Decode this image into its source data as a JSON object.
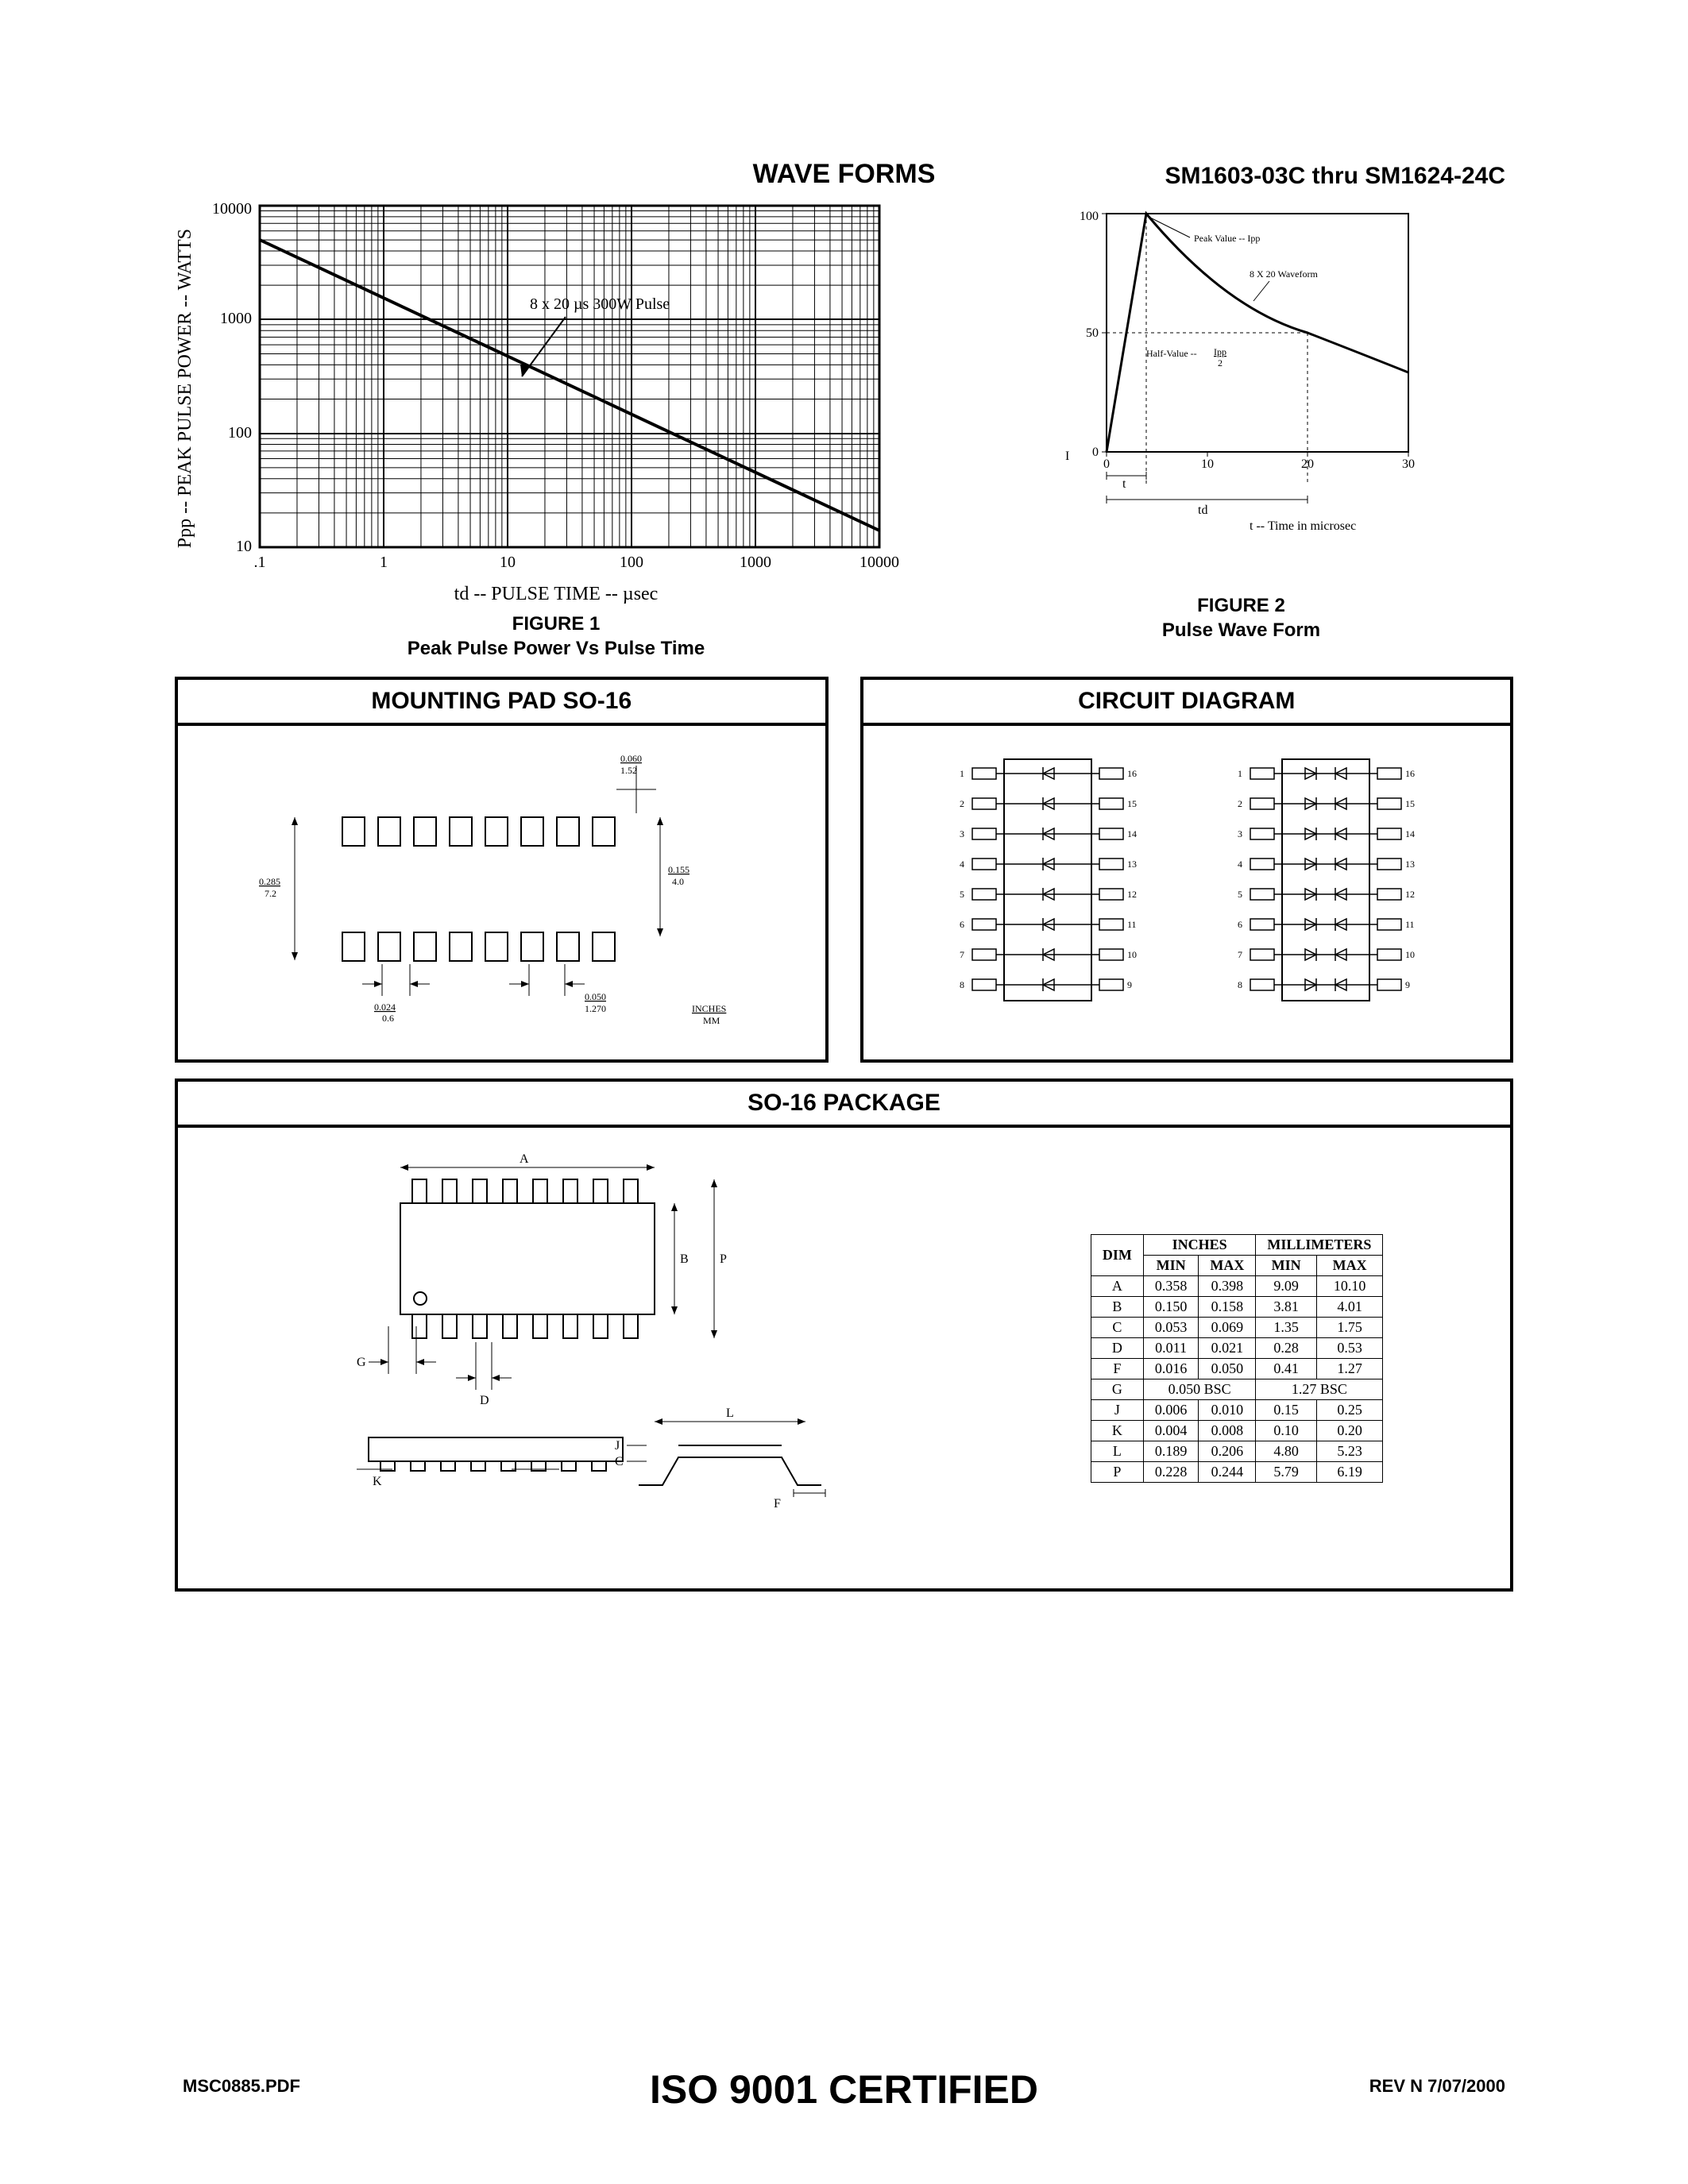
{
  "header": {
    "part_number": "SM1603-03C thru SM1624-24C",
    "title": "WAVE FORMS"
  },
  "figure1": {
    "caption_line1": "FIGURE  1",
    "caption_line2": "Peak Pulse Power Vs Pulse Time",
    "y_label": "Ppp -- PEAK PULSE POWER -- WATTS",
    "x_label": "td -- PULSE TIME -- µsec",
    "annotation": "8 x 20 µs 300W Pulse",
    "type": "loglog-line",
    "xlim": [
      0.1,
      10000
    ],
    "ylim": [
      10,
      10000
    ],
    "x_ticks": [
      ".1",
      "1",
      "10",
      "100",
      "1000",
      "10000"
    ],
    "y_ticks": [
      "10",
      "100",
      "1000",
      "10000"
    ],
    "line_points": [
      [
        0.1,
        5000
      ],
      [
        10000,
        14
      ]
    ],
    "line_color": "#000000",
    "grid_color": "#000000",
    "background_color": "#ffffff"
  },
  "figure2": {
    "caption_line1": "FIGURE 2",
    "caption_line2": "Pulse Wave Form",
    "type": "waveform",
    "x_ticks": [
      "0",
      "10",
      "20",
      "30"
    ],
    "y_ticks": [
      "0",
      "50",
      "100"
    ],
    "x_axis_label": "t -- Time in microsec",
    "y_axis_label": "I",
    "annotations": {
      "peak": "Peak Value -- Ipp",
      "wave": "8 X 20 Waveform",
      "half": "Half-Value --",
      "ipp_frac": "Ipp",
      "t": "t",
      "td": "td"
    },
    "line_color": "#000000",
    "background_color": "#ffffff"
  },
  "mounting_pad": {
    "title": "MOUNTING PAD  SO-16",
    "dims": {
      "h_overall": {
        "in": "0.060",
        "mm": "1.52"
      },
      "w_overall": {
        "in": "0.155",
        "mm": "4.0"
      },
      "h_pad": {
        "in": "0.285",
        "mm": "7.2"
      },
      "w_pad": {
        "in": "0.024",
        "mm": "0.6"
      },
      "pitch": {
        "in": "0.050",
        "mm": "1.270"
      }
    },
    "units_label": "INCHES\nMM"
  },
  "circuit_diagram": {
    "title": "CIRCUIT DIAGRAM",
    "left_pins": [
      1,
      2,
      3,
      4,
      5,
      6,
      7,
      8
    ],
    "right_pins": [
      16,
      15,
      14,
      13,
      12,
      11,
      10,
      9
    ]
  },
  "package": {
    "title": "SO-16 PACKAGE",
    "dim_labels": [
      "A",
      "B",
      "P",
      "G",
      "D",
      "L",
      "J",
      "C",
      "K",
      "F"
    ],
    "table": {
      "header_inches": "INCHES",
      "header_mm": "MILLIMETERS",
      "subheaders": [
        "DIM",
        "MIN",
        "MAX",
        "MIN",
        "MAX"
      ],
      "rows": [
        {
          "dim": "A",
          "in_min": "0.358",
          "in_max": "0.398",
          "mm_min": "9.09",
          "mm_max": "10.10"
        },
        {
          "dim": "B",
          "in_min": "0.150",
          "in_max": "0.158",
          "mm_min": "3.81",
          "mm_max": "4.01"
        },
        {
          "dim": "C",
          "in_min": "0.053",
          "in_max": "0.069",
          "mm_min": "1.35",
          "mm_max": "1.75"
        },
        {
          "dim": "D",
          "in_min": "0.011",
          "in_max": "0.021",
          "mm_min": "0.28",
          "mm_max": "0.53"
        },
        {
          "dim": "F",
          "in_min": "0.016",
          "in_max": "0.050",
          "mm_min": "0.41",
          "mm_max": "1.27"
        },
        {
          "dim": "G",
          "in_span": "0.050 BSC",
          "mm_span": "1.27 BSC"
        },
        {
          "dim": "J",
          "in_min": "0.006",
          "in_max": "0.010",
          "mm_min": "0.15",
          "mm_max": "0.25"
        },
        {
          "dim": "K",
          "in_min": "0.004",
          "in_max": "0.008",
          "mm_min": "0.10",
          "mm_max": "0.20"
        },
        {
          "dim": "L",
          "in_min": "0.189",
          "in_max": "0.206",
          "mm_min": "4.80",
          "mm_max": "5.23"
        },
        {
          "dim": "P",
          "in_min": "0.228",
          "in_max": "0.244",
          "mm_min": "5.79",
          "mm_max": "6.19"
        }
      ]
    }
  },
  "footer": {
    "left": "MSC0885.PDF",
    "center": "ISO 9001 CERTIFIED",
    "right": "REV N  7/07/2000"
  }
}
